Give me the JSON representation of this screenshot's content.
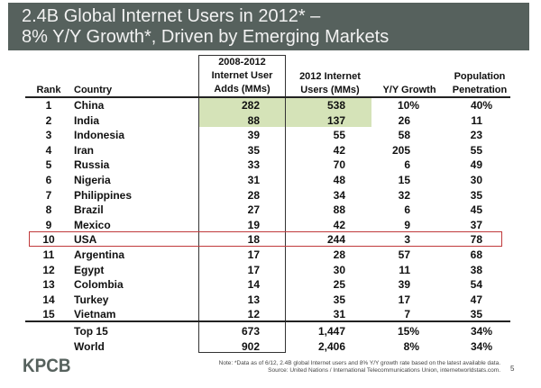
{
  "title": {
    "line1": "2.4B Global Internet Users in 2012* –",
    "line2": "8% Y/Y Growth*, Driven by Emerging Markets"
  },
  "colors": {
    "title_bar": "#56615d",
    "highlight": "#d5e3b8",
    "usa_box": "#c0393b"
  },
  "headers": {
    "rank": "Rank",
    "country": "Country",
    "adds": [
      "2008-2012",
      "Internet User",
      "Adds (MMs)"
    ],
    "users": [
      "2012 Internet",
      "Users (MMs)"
    ],
    "yoy": "Y/Y Growth",
    "penetration": [
      "Population",
      "Penetration"
    ]
  },
  "rows": [
    {
      "rank": "1",
      "country": "China",
      "adds": "282",
      "users": "538",
      "yoy": "10%",
      "pen": "40%"
    },
    {
      "rank": "2",
      "country": "India",
      "adds": "88",
      "users": "137",
      "yoy": "26",
      "pen": "11"
    },
    {
      "rank": "3",
      "country": "Indonesia",
      "adds": "39",
      "users": "55",
      "yoy": "58",
      "pen": "23"
    },
    {
      "rank": "4",
      "country": "Iran",
      "adds": "35",
      "users": "42",
      "yoy": "205",
      "pen": "55"
    },
    {
      "rank": "5",
      "country": "Russia",
      "adds": "33",
      "users": "70",
      "yoy": "6",
      "pen": "49"
    },
    {
      "rank": "6",
      "country": "Nigeria",
      "adds": "31",
      "users": "48",
      "yoy": "15",
      "pen": "30"
    },
    {
      "rank": "7",
      "country": "Philippines",
      "adds": "28",
      "users": "34",
      "yoy": "32",
      "pen": "35"
    },
    {
      "rank": "8",
      "country": "Brazil",
      "adds": "27",
      "users": "88",
      "yoy": "6",
      "pen": "45"
    },
    {
      "rank": "9",
      "country": "Mexico",
      "adds": "19",
      "users": "42",
      "yoy": "9",
      "pen": "37"
    },
    {
      "rank": "10",
      "country": "USA",
      "adds": "18",
      "users": "244",
      "yoy": "3",
      "pen": "78"
    },
    {
      "rank": "11",
      "country": "Argentina",
      "adds": "17",
      "users": "28",
      "yoy": "57",
      "pen": "68"
    },
    {
      "rank": "12",
      "country": "Egypt",
      "adds": "17",
      "users": "30",
      "yoy": "11",
      "pen": "38"
    },
    {
      "rank": "13",
      "country": "Colombia",
      "adds": "14",
      "users": "25",
      "yoy": "39",
      "pen": "54"
    },
    {
      "rank": "14",
      "country": "Turkey",
      "adds": "13",
      "users": "35",
      "yoy": "17",
      "pen": "47"
    },
    {
      "rank": "15",
      "country": "Vietnam",
      "adds": "12",
      "users": "31",
      "yoy": "7",
      "pen": "35"
    }
  ],
  "totals": [
    {
      "rank": "",
      "country": "Top 15",
      "adds": "673",
      "users": "1,447",
      "yoy": "15%",
      "pen": "34%"
    },
    {
      "rank": "",
      "country": "World",
      "adds": "902",
      "users": "2,406",
      "yoy": "8%",
      "pen": "34%"
    }
  ],
  "footer": {
    "logo": "KPCB",
    "note": "Note: *Data as of 6/12, 2.4B global Internet users and 8% Y/Y growth rate based on the latest available data.",
    "source": "Source: United Nations / International Telecommunications Union, internetworldstats.com.",
    "page": "5"
  }
}
